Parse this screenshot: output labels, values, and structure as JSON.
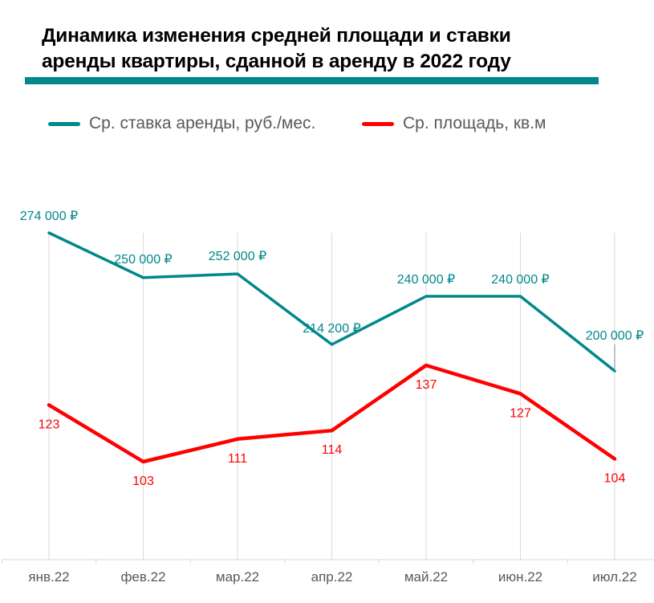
{
  "chart_data": {
    "type": "line",
    "title": "Динамика изменения средней площади и ставки аренды квартиры, сданной в аренду в 2022 году",
    "xlabel": "",
    "ylabel": "",
    "categories": [
      "янв.22",
      "фев.22",
      "мар.22",
      "апр.22",
      "май.22",
      "июн.22",
      "июл.22"
    ],
    "grid": "vertical",
    "legend_position": "top",
    "series": [
      {
        "name": "Ср. ставка аренды, руб./мес.",
        "color": "#00888C",
        "axis": "left",
        "values": [
          274000,
          250000,
          252000,
          214200,
          240000,
          240000,
          200000
        ],
        "labels": [
          "274 000 ₽",
          "250 000 ₽",
          "252 000 ₽",
          "214 200 ₽",
          "240 000 ₽",
          "240 000 ₽",
          "200 000 ₽"
        ],
        "label_position": "above"
      },
      {
        "name": "Ср. площадь, кв.м",
        "color": "#FF0000",
        "axis": "right",
        "values": [
          123,
          103,
          111,
          114,
          137,
          127,
          104
        ],
        "labels": [
          "123",
          "103",
          "111",
          "114",
          "137",
          "127",
          "104"
        ],
        "label_position": "below"
      }
    ],
    "axis_ranges": {
      "left": [
        0,
        274000
      ],
      "right": [
        0,
        137
      ]
    }
  },
  "header": {
    "title_line1": "Динамика изменения средней площади и ставки",
    "title_line2": "аренды квартиры, сданной в аренду в 2022 году",
    "accent_color": "#00888C"
  },
  "legend": {
    "items": [
      {
        "label": "Ср. ставка аренды, руб./мес.",
        "color": "#00888C"
      },
      {
        "label": "Ср. площадь, кв.м",
        "color": "#FF0000"
      }
    ]
  }
}
